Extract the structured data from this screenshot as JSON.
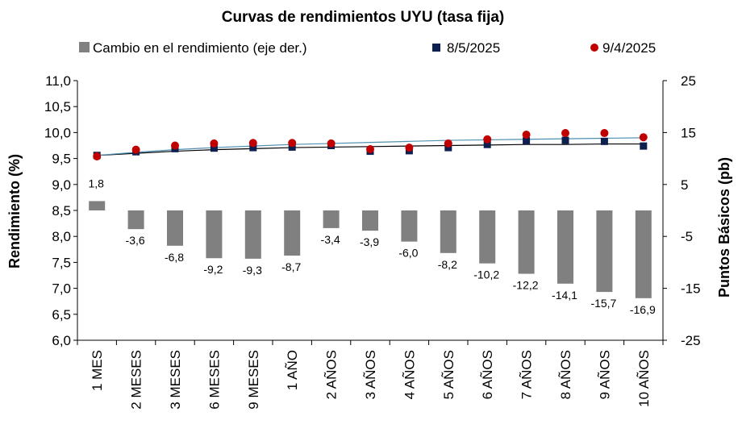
{
  "chart_data": {
    "type": "bar+line",
    "title": "Curvas de rendimientos UYU (tasa fija)",
    "categories": [
      "1 MES",
      "2 MESES",
      "3 MESES",
      "6 MESES",
      "9 MESES",
      "1 AÑO",
      "2 AÑOS",
      "3 AÑOS",
      "4 AÑOS",
      "5 AÑOS",
      "6 AÑOS",
      "7 AÑOS",
      "8 AÑOS",
      "9 AÑOS",
      "10 AÑOS"
    ],
    "series": [
      {
        "name": "Cambio en el rendimiento (eje der.)",
        "type": "bar",
        "axis": "right",
        "color": "#808080",
        "values": [
          1.8,
          -3.6,
          -6.8,
          -9.2,
          -9.3,
          -8.7,
          -3.4,
          -3.9,
          -6.0,
          -8.2,
          -10.2,
          -12.2,
          -14.1,
          -15.7,
          -16.9
        ],
        "labels": [
          "1,8",
          "-3,6",
          "-6,8",
          "-9,2",
          "-9,3",
          "-8,7",
          "-3,4",
          "-3,9",
          "-6,0",
          "-8,2",
          "-10,2",
          "-12,2",
          "-14,1",
          "-15,7",
          "-16,9"
        ]
      },
      {
        "name": "8/5/2025",
        "type": "marker",
        "marker": "square",
        "axis": "left",
        "color": "#0d1f4f",
        "values": [
          9.56,
          9.63,
          9.69,
          9.7,
          9.71,
          9.72,
          9.75,
          9.64,
          9.65,
          9.71,
          9.77,
          9.84,
          9.85,
          9.83,
          9.74
        ]
      },
      {
        "name": "9/4/2025",
        "type": "marker",
        "marker": "circle",
        "axis": "left",
        "color": "#c00000",
        "values": [
          9.54,
          9.67,
          9.75,
          9.79,
          9.8,
          9.8,
          9.79,
          9.68,
          9.71,
          9.79,
          9.87,
          9.96,
          9.99,
          9.99,
          9.91
        ]
      }
    ],
    "trendlines": [
      {
        "series": "8/5/2025",
        "color": "#000000",
        "values": [
          9.56,
          9.6,
          9.64,
          9.67,
          9.69,
          9.71,
          9.72,
          9.73,
          9.74,
          9.75,
          9.76,
          9.77,
          9.77,
          9.78,
          9.78
        ]
      },
      {
        "series": "9/4/2025",
        "color": "#4f8fb0",
        "values": [
          9.56,
          9.62,
          9.67,
          9.71,
          9.74,
          9.77,
          9.79,
          9.81,
          9.83,
          9.85,
          9.86,
          9.87,
          9.88,
          9.89,
          9.9
        ]
      }
    ],
    "left_axis": {
      "label": "Rendimiento (%)",
      "min": 6.0,
      "max": 11.0,
      "step": 0.5,
      "ticks": [
        "6,0",
        "6,5",
        "7,0",
        "7,5",
        "8,0",
        "8,5",
        "9,0",
        "9,5",
        "10,0",
        "10,5",
        "11,0"
      ]
    },
    "right_axis": {
      "label": "Puntos Básicos (pb)",
      "min": -25,
      "max": 25,
      "step": 10,
      "ticks": [
        "-25",
        "-15",
        "-5",
        "5",
        "15",
        "25"
      ]
    },
    "legend_position": "top",
    "grid": false
  }
}
